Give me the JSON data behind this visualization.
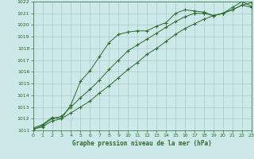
{
  "title": "Graphe pression niveau de la mer (hPa)",
  "background_color": "#cce8e8",
  "grid_color": "#aacccc",
  "line_color": "#2d6a2d",
  "xlim": [
    0,
    23
  ],
  "ylim": [
    1011,
    1022
  ],
  "yticks": [
    1011,
    1012,
    1013,
    1014,
    1015,
    1016,
    1017,
    1018,
    1019,
    1020,
    1021,
    1022
  ],
  "xticks": [
    0,
    1,
    2,
    3,
    4,
    5,
    6,
    7,
    8,
    9,
    10,
    11,
    12,
    13,
    14,
    15,
    16,
    17,
    18,
    19,
    20,
    21,
    22,
    23
  ],
  "line1_x": [
    0,
    1,
    2,
    3,
    4,
    5,
    6,
    7,
    8,
    9,
    10,
    11,
    12,
    13,
    14,
    15,
    16,
    17,
    18,
    19,
    20,
    21,
    22,
    23
  ],
  "line1_y": [
    1011.2,
    1011.5,
    1012.1,
    1012.0,
    1013.2,
    1015.2,
    1016.1,
    1017.3,
    1018.5,
    1019.2,
    1019.4,
    1019.5,
    1019.5,
    1019.9,
    1020.2,
    1021.0,
    1021.3,
    1021.2,
    1021.1,
    1020.8,
    1021.0,
    1021.5,
    1022.0,
    1021.6
  ],
  "line2_x": [
    0,
    1,
    2,
    3,
    4,
    5,
    6,
    7,
    8,
    9,
    10,
    11,
    12,
    13,
    14,
    15,
    16,
    17,
    18,
    19,
    20,
    21,
    22,
    23
  ],
  "line2_y": [
    1011.1,
    1011.4,
    1012.0,
    1012.2,
    1013.0,
    1013.8,
    1014.5,
    1015.3,
    1016.2,
    1017.0,
    1017.8,
    1018.3,
    1018.8,
    1019.3,
    1019.8,
    1020.3,
    1020.7,
    1021.0,
    1021.0,
    1020.8,
    1021.0,
    1021.3,
    1021.7,
    1021.5
  ],
  "line3_x": [
    0,
    1,
    2,
    3,
    4,
    5,
    6,
    7,
    8,
    9,
    10,
    11,
    12,
    13,
    14,
    15,
    16,
    17,
    18,
    19,
    20,
    21,
    22,
    23
  ],
  "line3_y": [
    1011.1,
    1011.3,
    1011.8,
    1012.0,
    1012.5,
    1013.0,
    1013.5,
    1014.2,
    1014.8,
    1015.5,
    1016.2,
    1016.8,
    1017.5,
    1018.0,
    1018.6,
    1019.2,
    1019.7,
    1020.1,
    1020.5,
    1020.8,
    1021.0,
    1021.3,
    1021.7,
    1021.9
  ]
}
